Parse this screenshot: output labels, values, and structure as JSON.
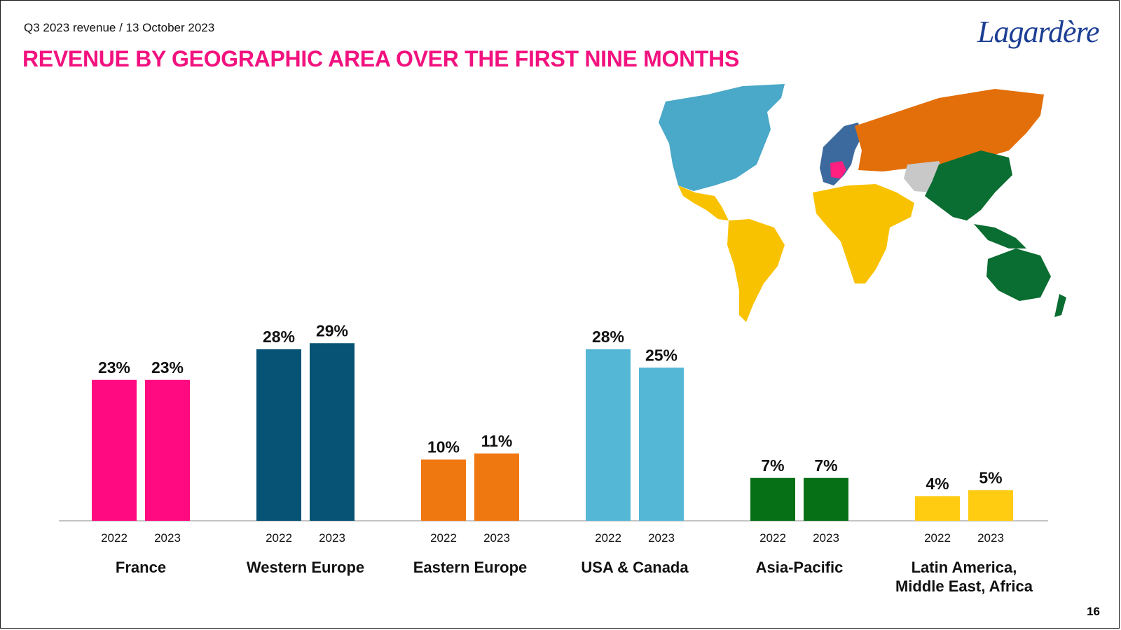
{
  "header": {
    "subtitle": "Q3 2023 revenue / 13 October 2023",
    "title": "REVENUE BY GEOGRAPHIC AREA OVER THE FIRST NINE MONTHS",
    "logo_text": "Lagardère",
    "page_number": "16"
  },
  "map": {
    "regions": [
      {
        "name": "North America",
        "color": "#4aa8c8"
      },
      {
        "name": "Latin America / Africa / Middle East",
        "color": "#f9c200"
      },
      {
        "name": "Eastern Europe / Russia",
        "color": "#e36f0a"
      },
      {
        "name": "Western Europe",
        "color": "#3d6a9e"
      },
      {
        "name": "France",
        "color": "#ff1f80"
      },
      {
        "name": "Asia-Pacific",
        "color": "#0a6d31"
      },
      {
        "name": "Central Asia",
        "color": "#c8c8c8"
      }
    ]
  },
  "chart_data": {
    "type": "bar",
    "title": "",
    "xlabel": "",
    "ylabel": "",
    "ylim": [
      0,
      30
    ],
    "grid": false,
    "legend": "none",
    "years": [
      "2022",
      "2023"
    ],
    "groups": [
      {
        "name": "France",
        "values": [
          23,
          23
        ],
        "labels": [
          "23%",
          "23%"
        ],
        "color": "#ff0a80"
      },
      {
        "name": "Western Europe",
        "values": [
          28,
          29
        ],
        "labels": [
          "28%",
          "29%"
        ],
        "color": "#075375"
      },
      {
        "name": "Eastern Europe",
        "values": [
          10,
          11
        ],
        "labels": [
          "10%",
          "11%"
        ],
        "color": "#f07810"
      },
      {
        "name": "USA & Canada",
        "values": [
          28,
          25
        ],
        "labels": [
          "28%",
          "25%"
        ],
        "color": "#55b7d6"
      },
      {
        "name": "Asia-Pacific",
        "values": [
          7,
          7
        ],
        "labels": [
          "7%",
          "7%"
        ],
        "color": "#067016"
      },
      {
        "name": "Latin America, Middle East, Africa",
        "name_lines": [
          "Latin America,",
          "Middle East, Africa"
        ],
        "values": [
          4,
          5
        ],
        "labels": [
          "4%",
          "5%"
        ],
        "color": "#ffcc12"
      }
    ]
  }
}
